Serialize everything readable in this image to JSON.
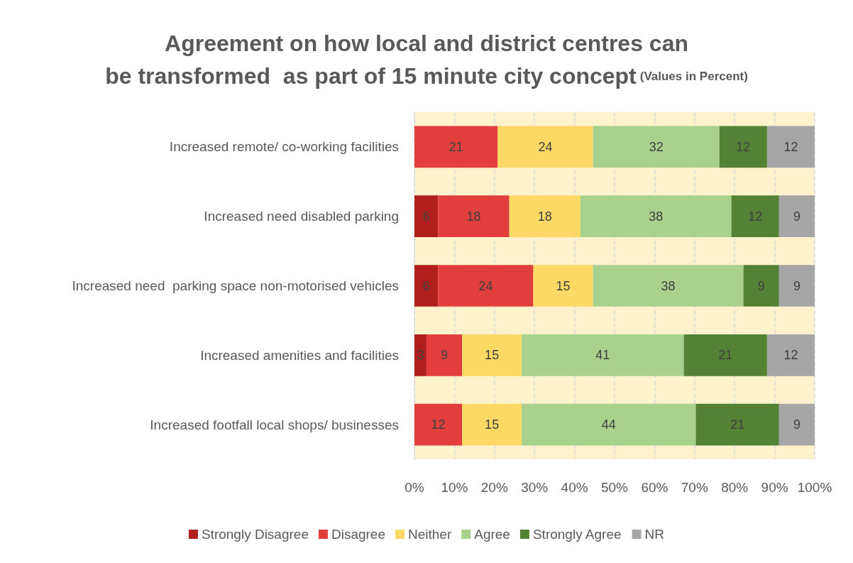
{
  "chart_data": {
    "type": "bar",
    "orientation": "horizontal",
    "stacked": true,
    "title": "Agreement on how local and district centres can be transformed  as part of 15 minute city concept",
    "subtitle": "(Values in Percent)",
    "categories": [
      "Increased remote/ co-working facilities",
      "Increased need disabled parking",
      "Increased need  parking space non-motorised vehicles",
      "Increased amenities and facilities",
      "Increased footfall local shops/ businesses"
    ],
    "series": [
      {
        "name": "Strongly Disagree",
        "color": "#b01e1e",
        "values": [
          0,
          5.9,
          5.9,
          3.0,
          0
        ],
        "value_labels": [
          null,
          "6",
          "6",
          "3",
          null
        ]
      },
      {
        "name": "Disagree",
        "color": "#e23e3e",
        "values": [
          20.8,
          17.8,
          23.8,
          8.9,
          11.9
        ],
        "value_labels": [
          "21",
          "18",
          "24",
          "9",
          "12"
        ]
      },
      {
        "name": "Neither",
        "color": "#ffd966",
        "values": [
          23.8,
          17.8,
          14.9,
          14.9,
          14.9
        ],
        "value_labels": [
          "24",
          "18",
          "15",
          "15",
          "15"
        ]
      },
      {
        "name": "Agree",
        "color": "#a9d18e",
        "values": [
          31.6,
          37.7,
          37.6,
          40.5,
          43.5
        ],
        "value_labels": [
          "32",
          "38",
          "38",
          "41",
          "44"
        ]
      },
      {
        "name": "Strongly Agree",
        "color": "#548235",
        "values": [
          11.9,
          11.9,
          8.9,
          20.8,
          20.8
        ],
        "value_labels": [
          "12",
          "12",
          "9",
          "21",
          "21"
        ]
      },
      {
        "name": "NR",
        "color": "#a6a6a6",
        "values": [
          11.9,
          8.9,
          8.9,
          11.9,
          8.9
        ],
        "value_labels": [
          "12",
          "9",
          "9",
          "12",
          "9"
        ]
      }
    ],
    "xlim": [
      0,
      100
    ],
    "xticks": [
      {
        "value": 0,
        "label": "0%"
      },
      {
        "value": 10,
        "label": "10%"
      },
      {
        "value": 20,
        "label": "20%"
      },
      {
        "value": 30,
        "label": "30%"
      },
      {
        "value": 40,
        "label": "40%"
      },
      {
        "value": 50,
        "label": "50%"
      },
      {
        "value": 60,
        "label": "60%"
      },
      {
        "value": 70,
        "label": "70%"
      },
      {
        "value": 80,
        "label": "80%"
      },
      {
        "value": 90,
        "label": "90%"
      },
      {
        "value": 100,
        "label": "100%"
      }
    ],
    "grid": "x",
    "legend": "bottom"
  }
}
